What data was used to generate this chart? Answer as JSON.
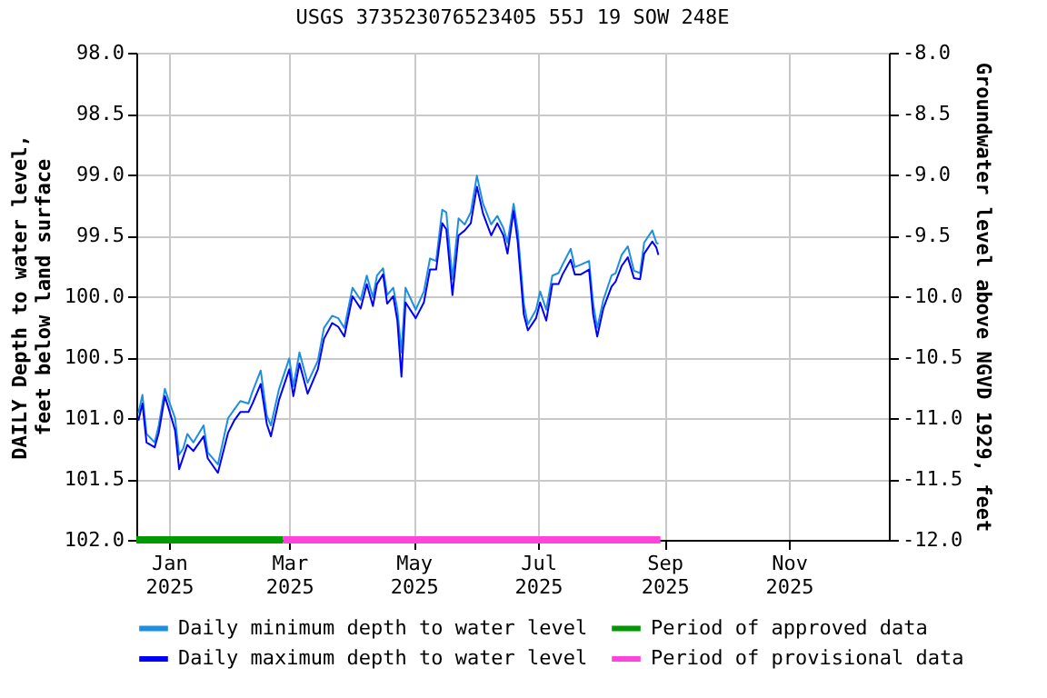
{
  "chart_data": {
    "type": "line",
    "title": "USGS 373523076523405 55J 19 SOW 248E",
    "ylabel": "DAILY Depth to water level, feet below land surface",
    "y2label": "Groundwater level above NGVD 1929, feet",
    "x": [
      "2024-12-17",
      "2024-12-19",
      "2024-12-21",
      "2024-12-25",
      "2024-12-27",
      "2024-12-30",
      "2025-01-01",
      "2025-01-04",
      "2025-01-06",
      "2025-01-08",
      "2025-01-10",
      "2025-01-13",
      "2025-01-18",
      "2025-01-20",
      "2025-01-25",
      "2025-01-30",
      "2025-02-02",
      "2025-02-05",
      "2025-02-09",
      "2025-02-11",
      "2025-02-15",
      "2025-02-18",
      "2025-02-20",
      "2025-02-24",
      "2025-03-01",
      "2025-03-03",
      "2025-03-06",
      "2025-03-10",
      "2025-03-15",
      "2025-03-18",
      "2025-03-22",
      "2025-03-25",
      "2025-03-28",
      "2025-04-01",
      "2025-04-05",
      "2025-04-08",
      "2025-04-11",
      "2025-04-13",
      "2025-04-16",
      "2025-04-18",
      "2025-04-21",
      "2025-04-23",
      "2025-04-25",
      "2025-04-27",
      "2025-05-02",
      "2025-05-06",
      "2025-05-09",
      "2025-05-12",
      "2025-05-15",
      "2025-05-17",
      "2025-05-20",
      "2025-05-23",
      "2025-05-26",
      "2025-05-29",
      "2025-06-01",
      "2025-06-04",
      "2025-06-08",
      "2025-06-11",
      "2025-06-14",
      "2025-06-16",
      "2025-06-19",
      "2025-06-21",
      "2025-06-24",
      "2025-06-26",
      "2025-06-30",
      "2025-07-02",
      "2025-07-05",
      "2025-07-08",
      "2025-07-11",
      "2025-07-13",
      "2025-07-17",
      "2025-07-19",
      "2025-07-22",
      "2025-07-26",
      "2025-07-28",
      "2025-07-30",
      "2025-08-02",
      "2025-08-06",
      "2025-08-08",
      "2025-08-11",
      "2025-08-14",
      "2025-08-17",
      "2025-08-20",
      "2025-08-22",
      "2025-08-26",
      "2025-08-28",
      "2025-08-29"
    ],
    "series": [
      {
        "name": "Daily minimum depth to water level",
        "color": "#1c8fe0",
        "values": [
          100.96,
          100.81,
          101.13,
          101.2,
          101.06,
          100.76,
          100.86,
          101.0,
          101.3,
          101.25,
          101.13,
          101.2,
          101.06,
          101.28,
          101.38,
          101.0,
          100.93,
          100.86,
          100.88,
          100.78,
          100.61,
          100.98,
          101.06,
          100.76,
          100.51,
          100.74,
          100.46,
          100.71,
          100.53,
          100.26,
          100.16,
          100.18,
          100.26,
          99.93,
          100.03,
          99.83,
          100.01,
          99.83,
          99.77,
          99.99,
          99.93,
          100.11,
          100.46,
          99.93,
          100.11,
          99.96,
          99.69,
          99.71,
          99.29,
          99.31,
          99.86,
          99.36,
          99.41,
          99.31,
          99.01,
          99.24,
          99.41,
          99.34,
          99.44,
          99.56,
          99.24,
          99.46,
          100.06,
          100.23,
          100.11,
          99.96,
          100.11,
          99.83,
          99.81,
          99.74,
          99.61,
          99.76,
          99.74,
          99.71,
          100.06,
          100.26,
          100.03,
          99.83,
          99.81,
          99.66,
          99.59,
          99.79,
          99.81,
          99.56,
          99.46,
          99.56,
          99.57
        ]
      },
      {
        "name": "Daily maximum depth to water level",
        "color": "#0000ff",
        "values": [
          101.02,
          100.88,
          101.2,
          101.24,
          101.12,
          100.82,
          100.93,
          101.1,
          101.42,
          101.32,
          101.22,
          101.27,
          101.15,
          101.33,
          101.45,
          101.12,
          101.02,
          100.95,
          100.95,
          100.88,
          100.72,
          101.05,
          101.15,
          100.85,
          100.6,
          100.82,
          100.55,
          100.8,
          100.6,
          100.35,
          100.22,
          100.25,
          100.33,
          100.0,
          100.1,
          99.9,
          100.08,
          99.9,
          99.82,
          100.06,
          100.0,
          100.2,
          100.66,
          100.05,
          100.18,
          100.05,
          99.78,
          99.78,
          99.4,
          99.45,
          99.99,
          99.5,
          99.46,
          99.4,
          99.1,
          99.32,
          99.5,
          99.4,
          99.5,
          99.65,
          99.3,
          99.55,
          100.15,
          100.28,
          100.18,
          100.05,
          100.2,
          99.9,
          99.9,
          99.82,
          99.7,
          99.82,
          99.82,
          99.78,
          100.15,
          100.33,
          100.1,
          99.92,
          99.88,
          99.75,
          99.68,
          99.85,
          99.86,
          99.65,
          99.55,
          99.6,
          99.66
        ]
      },
      {
        "name": "Period of approved data",
        "color": "#009900",
        "x": [
          "2024-12-16",
          "2025-02-26"
        ],
        "values": [
          102,
          102
        ]
      },
      {
        "name": "Period of provisional data",
        "color": "#ff44dd",
        "x": [
          "2025-02-26",
          "2025-08-30"
        ],
        "values": [
          102,
          102
        ]
      }
    ],
    "xlim": [
      "2024-12-16",
      "2025-12-20"
    ],
    "xticks": [
      {
        "value": "2025-01-01",
        "label": "Jan 2025"
      },
      {
        "value": "2025-03-01",
        "label": "Mar 2025"
      },
      {
        "value": "2025-05-01",
        "label": "May 2025"
      },
      {
        "value": "2025-07-01",
        "label": "Jul 2025"
      },
      {
        "value": "2025-09-01",
        "label": "Sep 2025"
      },
      {
        "value": "2025-11-01",
        "label": "Nov 2025"
      }
    ],
    "ylim": [
      102,
      98
    ],
    "yticks": [
      {
        "value": 98,
        "label": "98.0"
      },
      {
        "value": 98.5,
        "label": "98.5"
      },
      {
        "value": 99,
        "label": "99.0"
      },
      {
        "value": 99.5,
        "label": "99.5"
      },
      {
        "value": 100,
        "label": "100.0"
      },
      {
        "value": 100.5,
        "label": "100.5"
      },
      {
        "value": 101,
        "label": "101.0"
      },
      {
        "value": 101.5,
        "label": "101.5"
      },
      {
        "value": 102,
        "label": "102.0"
      }
    ],
    "y2lim": [
      -12,
      -8
    ],
    "y2ticks": [
      {
        "value": -8,
        "label": "-8.0"
      },
      {
        "value": -8.5,
        "label": "-8.5"
      },
      {
        "value": -9,
        "label": "-9.0"
      },
      {
        "value": -9.5,
        "label": "-9.5"
      },
      {
        "value": -10,
        "label": "-10.0"
      },
      {
        "value": -10.5,
        "label": "-10.5"
      },
      {
        "value": -11,
        "label": "-11.0"
      },
      {
        "value": -11.5,
        "label": "-11.5"
      },
      {
        "value": -12,
        "label": "-12.0"
      }
    ],
    "grid": true,
    "legend": "bottom"
  }
}
